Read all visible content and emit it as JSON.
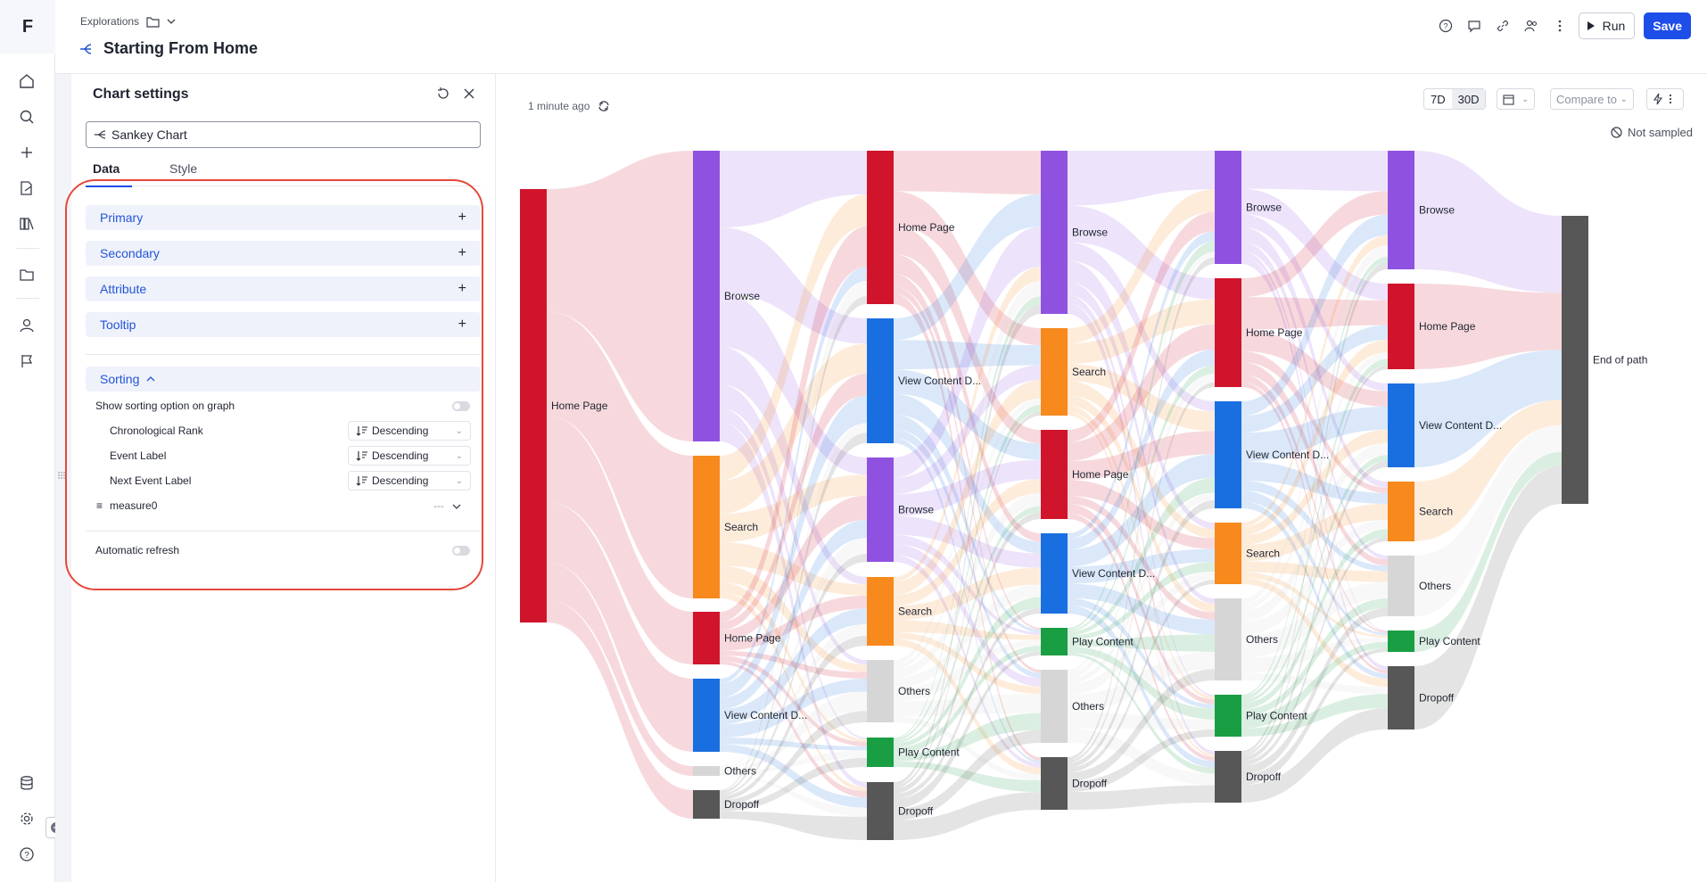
{
  "app": {
    "logo": "F"
  },
  "rail": {
    "top_icons": [
      "home-icon",
      "search-icon",
      "plus-icon",
      "edit-document-icon",
      "library-icon"
    ],
    "mid_icons": [
      "folder-icon",
      "user-icon",
      "flag-icon"
    ],
    "bottom_icons": [
      "database-icon",
      "gear-icon",
      "help-icon"
    ]
  },
  "header": {
    "breadcrumb": "Explorations",
    "title": "Starting From Home",
    "run_label": "Run",
    "save_label": "Save"
  },
  "panel": {
    "title": "Chart settings",
    "chart_type": "Sankey Chart",
    "tabs": [
      "Data",
      "Style"
    ],
    "sections": [
      "Primary",
      "Secondary",
      "Attribute",
      "Tooltip"
    ],
    "sorting": {
      "label": "Sorting",
      "show_option_label": "Show sorting option on graph",
      "rows": [
        {
          "label": "Chronological Rank",
          "value": "Descending"
        },
        {
          "label": "Event Label",
          "value": "Descending"
        },
        {
          "label": "Next Event Label",
          "value": "Descending"
        }
      ],
      "measure": "measure0",
      "measure_value": "---"
    },
    "auto_refresh_label": "Automatic refresh"
  },
  "toolbar": {
    "updated": "1 minute ago",
    "range_7d": "7D",
    "range_30d": "30D",
    "compare": "Compare to",
    "not_sampled": "Not sampled"
  },
  "colors": {
    "home": "#d0142b",
    "browse": "#8f52e0",
    "search": "#f7891d",
    "view": "#1a6fe0",
    "others": "#d6d6d6",
    "play": "#1a9e44",
    "dropoff": "#575757",
    "end": "#575757",
    "accent": "#1d4ee8",
    "highlight": "#e5483b"
  },
  "chart_data": {
    "type": "sankey",
    "columns": [
      {
        "nodes": [
          {
            "label": "Home Page",
            "cat": "home"
          }
        ]
      },
      {
        "nodes": [
          {
            "label": "Browse",
            "cat": "browse"
          },
          {
            "label": "Search",
            "cat": "search"
          },
          {
            "label": "Home Page",
            "cat": "home"
          },
          {
            "label": "View Content D...",
            "cat": "view"
          },
          {
            "label": "Others",
            "cat": "others"
          },
          {
            "label": "Dropoff",
            "cat": "dropoff"
          }
        ]
      },
      {
        "nodes": [
          {
            "label": "Home Page",
            "cat": "home"
          },
          {
            "label": "View Content D...",
            "cat": "view"
          },
          {
            "label": "Browse",
            "cat": "browse"
          },
          {
            "label": "Search",
            "cat": "search"
          },
          {
            "label": "Others",
            "cat": "others"
          },
          {
            "label": "Play Content",
            "cat": "play"
          },
          {
            "label": "Dropoff",
            "cat": "dropoff"
          }
        ]
      },
      {
        "nodes": [
          {
            "label": "Browse",
            "cat": "browse"
          },
          {
            "label": "Search",
            "cat": "search"
          },
          {
            "label": "Home Page",
            "cat": "home"
          },
          {
            "label": "View Content D...",
            "cat": "view"
          },
          {
            "label": "Play Content",
            "cat": "play"
          },
          {
            "label": "Others",
            "cat": "others"
          },
          {
            "label": "Dropoff",
            "cat": "dropoff"
          }
        ]
      },
      {
        "nodes": [
          {
            "label": "Browse",
            "cat": "browse"
          },
          {
            "label": "Home Page",
            "cat": "home"
          },
          {
            "label": "View Content D...",
            "cat": "view"
          },
          {
            "label": "Search",
            "cat": "search"
          },
          {
            "label": "Others",
            "cat": "others"
          },
          {
            "label": "Play Content",
            "cat": "play"
          },
          {
            "label": "Dropoff",
            "cat": "dropoff"
          }
        ]
      },
      {
        "nodes": [
          {
            "label": "Browse",
            "cat": "browse"
          },
          {
            "label": "Home Page",
            "cat": "home"
          },
          {
            "label": "View Content D...",
            "cat": "view"
          },
          {
            "label": "Search",
            "cat": "search"
          },
          {
            "label": "Others",
            "cat": "others"
          },
          {
            "label": "Play Content",
            "cat": "play"
          },
          {
            "label": "Dropoff",
            "cat": "dropoff"
          }
        ]
      },
      {
        "nodes": [
          {
            "label": "End of path",
            "cat": "end"
          }
        ]
      }
    ]
  }
}
